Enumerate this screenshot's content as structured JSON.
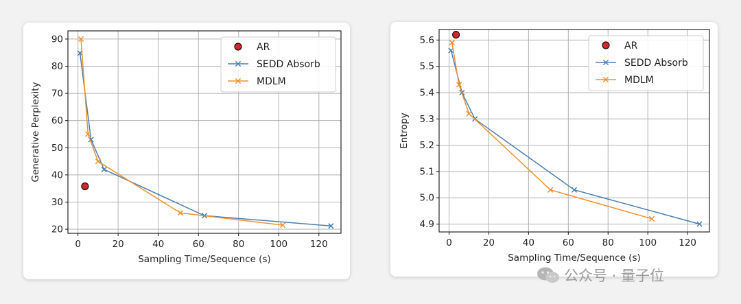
{
  "chart_data": [
    {
      "type": "line",
      "xlabel": "Sampling Time/Sequence (s)",
      "ylabel": "Generative Perplexity",
      "xlim": [
        -5,
        131
      ],
      "ylim": [
        18.5,
        93
      ],
      "xticks": [
        0,
        20,
        40,
        60,
        80,
        100,
        120
      ],
      "yticks": [
        20,
        30,
        40,
        50,
        60,
        70,
        80,
        90
      ],
      "grid": true,
      "legend_position": "top-right",
      "series": [
        {
          "name": "AR",
          "kind": "point",
          "color": "#d62728",
          "points": [
            [
              3.5,
              35.8
            ]
          ]
        },
        {
          "name": "SEDD Absorb",
          "kind": "line",
          "color": "#4a7fb5",
          "points": [
            [
              1,
              84.8
            ],
            [
              6.5,
              53
            ],
            [
              13,
              42
            ],
            [
              63,
              25
            ],
            [
              126,
              21.2
            ]
          ]
        },
        {
          "name": "MDLM",
          "kind": "line",
          "color": "#f0902d",
          "points": [
            [
              1.5,
              90
            ],
            [
              5,
              55
            ],
            [
              10,
              45
            ],
            [
              51,
              26
            ],
            [
              102,
              21.5
            ]
          ]
        }
      ]
    },
    {
      "type": "line",
      "xlabel": "Sampling Time/Sequence (s)",
      "ylabel": "Entropy",
      "xlim": [
        -5,
        131
      ],
      "ylim": [
        4.87,
        5.64
      ],
      "xticks": [
        0,
        20,
        40,
        60,
        80,
        100,
        120
      ],
      "yticks": [
        4.9,
        5.0,
        5.1,
        5.2,
        5.3,
        5.4,
        5.5,
        5.6
      ],
      "grid": true,
      "legend_position": "top-right",
      "series": [
        {
          "name": "AR",
          "kind": "point",
          "color": "#d62728",
          "points": [
            [
              3.5,
              5.62
            ]
          ]
        },
        {
          "name": "SEDD Absorb",
          "kind": "line",
          "color": "#4a7fb5",
          "points": [
            [
              1,
              5.56
            ],
            [
              6.5,
              5.4
            ],
            [
              13,
              5.3
            ],
            [
              63,
              5.03
            ],
            [
              126,
              4.9
            ]
          ]
        },
        {
          "name": "MDLM",
          "kind": "line",
          "color": "#f0902d",
          "points": [
            [
              1.5,
              5.59
            ],
            [
              5,
              5.43
            ],
            [
              10,
              5.32
            ],
            [
              51,
              5.03
            ],
            [
              102,
              4.92
            ]
          ]
        }
      ]
    }
  ],
  "watermark": {
    "icon": "wechat-icon",
    "text": "公众号 · 量子位"
  }
}
